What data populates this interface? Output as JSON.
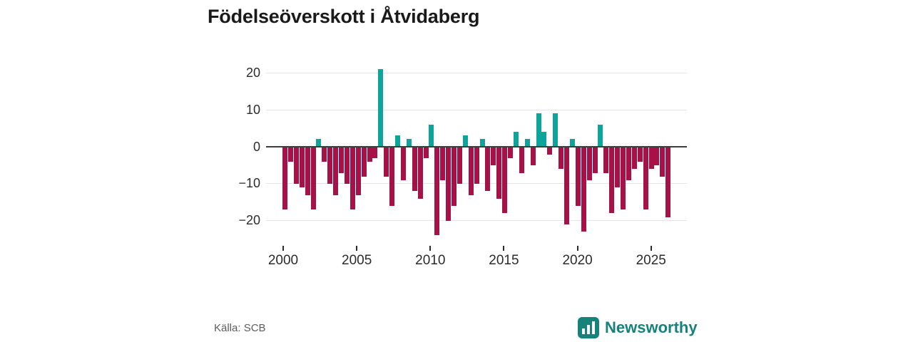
{
  "title": "Födelseöverskott i Åtvidaberg",
  "source": "Källa: SCB",
  "logo": {
    "text": "Newsworthy"
  },
  "colors": {
    "positive": "#0da59b",
    "negative": "#a61148",
    "zero_line": "#3d3d3d",
    "gridline": "#e4e4e4",
    "logo_teal": "#15837c",
    "title_text": "#1a1a1a",
    "axis_text": "#2b2b2b"
  },
  "chart_data": {
    "type": "bar",
    "title": "Födelseöverskott i Åtvidaberg",
    "xlabel": "",
    "ylabel": "",
    "x_axis": {
      "tick_years": [
        2000,
        2005,
        2010,
        2015,
        2020,
        2025
      ],
      "range_start": 2000,
      "range_end": 2026.5
    },
    "y_axis": {
      "ticks": [
        20,
        10,
        0,
        -10,
        -20
      ],
      "ylim": [
        -25,
        22
      ],
      "grid": true
    },
    "legend": "none",
    "series_note": "one bar per period from 2000 to 2026; teal = positive surplus, dark red = negative",
    "values": [
      -17,
      -4,
      -10,
      -11,
      -13,
      -17,
      2,
      -4,
      -10,
      -13,
      -7,
      -10,
      -17,
      -13,
      -8,
      -4,
      -3,
      21,
      -8,
      -16,
      3,
      -9,
      2,
      -12,
      -14,
      -3,
      6,
      -24,
      -9,
      -20,
      -16,
      -10,
      3,
      -13,
      -10,
      2,
      -12,
      -5,
      -14,
      -18,
      -3,
      4,
      -7,
      2,
      -5,
      9,
      4,
      -2,
      9,
      -6,
      -21,
      2,
      -16,
      -23,
      -9,
      -7,
      6,
      -7,
      -18,
      -11,
      -17,
      -9,
      -6,
      -4,
      -17,
      -6,
      -5,
      -8,
      -19
    ]
  }
}
